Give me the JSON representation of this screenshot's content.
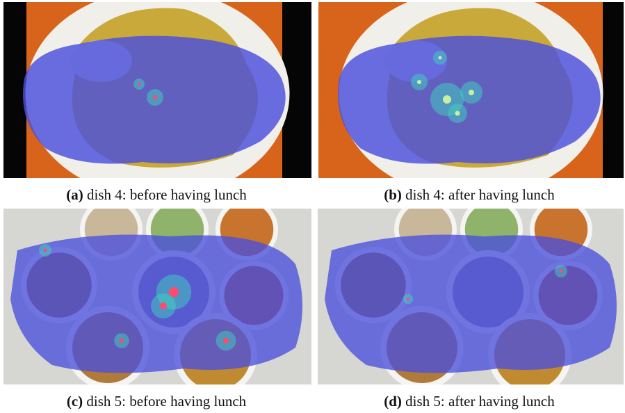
{
  "figure": {
    "panels": [
      {
        "label": "(a)",
        "caption": "dish 4: before having lunch"
      },
      {
        "label": "(b)",
        "caption": "dish 4: after having lunch"
      },
      {
        "label": "(c)",
        "caption": "dish 5: before having lunch"
      },
      {
        "label": "(d)",
        "caption": "dish 5: after having lunch"
      }
    ]
  }
}
